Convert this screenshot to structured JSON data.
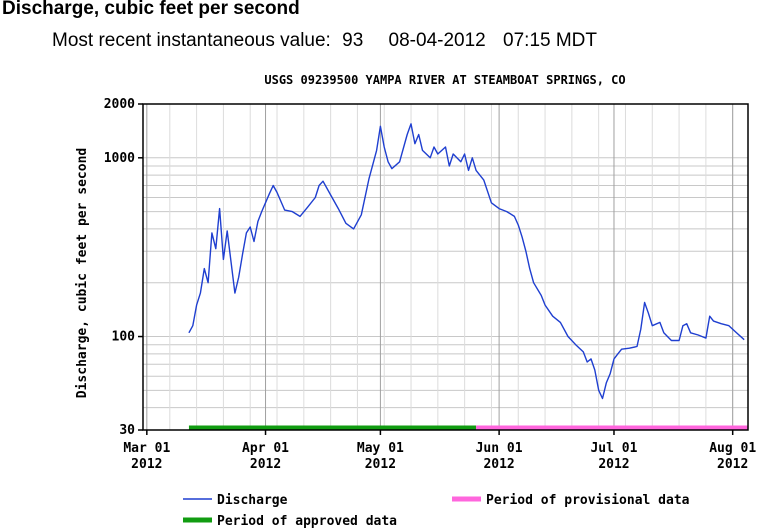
{
  "header": {
    "title": "Discharge, cubic feet per second",
    "recent_label": "Most recent instantaneous value:",
    "recent_value": "93",
    "recent_date": "08-04-2012",
    "recent_time": "07:15 MDT"
  },
  "chart_data": {
    "type": "line",
    "title": "USGS 09239500 YAMPA RIVER AT STEAMBOAT SPRINGS, CO",
    "ylabel": "Discharge, cubic feet per second",
    "xlabel": "",
    "y_scale": "log",
    "ylim": [
      30,
      2000
    ],
    "xlim": [
      "2012-02-29",
      "2012-08-05"
    ],
    "grid": true,
    "y_ticks": [
      30,
      100,
      1000,
      2000
    ],
    "x_ticks": [
      {
        "date": "2012-03-01",
        "line1": "Mar 01",
        "line2": "2012"
      },
      {
        "date": "2012-04-01",
        "line1": "Apr 01",
        "line2": "2012"
      },
      {
        "date": "2012-05-01",
        "line1": "May 01",
        "line2": "2012"
      },
      {
        "date": "2012-06-01",
        "line1": "Jun 01",
        "line2": "2012"
      },
      {
        "date": "2012-07-01",
        "line1": "Jul 01",
        "line2": "2012"
      },
      {
        "date": "2012-08-01",
        "line1": "Aug 01",
        "line2": "2012"
      }
    ],
    "series": [
      {
        "name": "Discharge",
        "color": "#1f3fd0",
        "points": [
          [
            "2012-03-12",
            105
          ],
          [
            "2012-03-13",
            115
          ],
          [
            "2012-03-14",
            150
          ],
          [
            "2012-03-15",
            175
          ],
          [
            "2012-03-16",
            240
          ],
          [
            "2012-03-17",
            200
          ],
          [
            "2012-03-18",
            380
          ],
          [
            "2012-03-19",
            310
          ],
          [
            "2012-03-20",
            520
          ],
          [
            "2012-03-21",
            270
          ],
          [
            "2012-03-22",
            390
          ],
          [
            "2012-03-23",
            260
          ],
          [
            "2012-03-24",
            175
          ],
          [
            "2012-03-25",
            215
          ],
          [
            "2012-03-26",
            290
          ],
          [
            "2012-03-27",
            380
          ],
          [
            "2012-03-28",
            410
          ],
          [
            "2012-03-29",
            340
          ],
          [
            "2012-03-30",
            440
          ],
          [
            "2012-03-31",
            500
          ],
          [
            "2012-04-02",
            630
          ],
          [
            "2012-04-03",
            700
          ],
          [
            "2012-04-04",
            640
          ],
          [
            "2012-04-06",
            510
          ],
          [
            "2012-04-08",
            500
          ],
          [
            "2012-04-10",
            470
          ],
          [
            "2012-04-12",
            530
          ],
          [
            "2012-04-14",
            600
          ],
          [
            "2012-04-15",
            700
          ],
          [
            "2012-04-16",
            740
          ],
          [
            "2012-04-18",
            620
          ],
          [
            "2012-04-20",
            520
          ],
          [
            "2012-04-22",
            430
          ],
          [
            "2012-04-24",
            400
          ],
          [
            "2012-04-26",
            480
          ],
          [
            "2012-04-28",
            760
          ],
          [
            "2012-04-30",
            1100
          ],
          [
            "2012-05-01",
            1500
          ],
          [
            "2012-05-02",
            1150
          ],
          [
            "2012-05-03",
            950
          ],
          [
            "2012-05-04",
            870
          ],
          [
            "2012-05-06",
            950
          ],
          [
            "2012-05-08",
            1350
          ],
          [
            "2012-05-09",
            1550
          ],
          [
            "2012-05-10",
            1200
          ],
          [
            "2012-05-11",
            1350
          ],
          [
            "2012-05-12",
            1100
          ],
          [
            "2012-05-14",
            1000
          ],
          [
            "2012-05-15",
            1150
          ],
          [
            "2012-05-16",
            1050
          ],
          [
            "2012-05-18",
            1150
          ],
          [
            "2012-05-19",
            900
          ],
          [
            "2012-05-20",
            1050
          ],
          [
            "2012-05-22",
            950
          ],
          [
            "2012-05-23",
            1050
          ],
          [
            "2012-05-24",
            850
          ],
          [
            "2012-05-25",
            1000
          ],
          [
            "2012-05-26",
            850
          ],
          [
            "2012-05-28",
            750
          ],
          [
            "2012-05-30",
            560
          ],
          [
            "2012-06-01",
            520
          ],
          [
            "2012-06-03",
            500
          ],
          [
            "2012-06-05",
            470
          ],
          [
            "2012-06-06",
            420
          ],
          [
            "2012-06-07",
            360
          ],
          [
            "2012-06-08",
            300
          ],
          [
            "2012-06-09",
            240
          ],
          [
            "2012-06-10",
            200
          ],
          [
            "2012-06-12",
            170
          ],
          [
            "2012-06-13",
            150
          ],
          [
            "2012-06-15",
            130
          ],
          [
            "2012-06-17",
            120
          ],
          [
            "2012-06-19",
            100
          ],
          [
            "2012-06-21",
            90
          ],
          [
            "2012-06-23",
            82
          ],
          [
            "2012-06-24",
            72
          ],
          [
            "2012-06-25",
            75
          ],
          [
            "2012-06-26",
            65
          ],
          [
            "2012-06-27",
            50
          ],
          [
            "2012-06-28",
            45
          ],
          [
            "2012-06-29",
            55
          ],
          [
            "2012-06-30",
            62
          ],
          [
            "2012-07-01",
            75
          ],
          [
            "2012-07-02",
            80
          ],
          [
            "2012-07-03",
            85
          ],
          [
            "2012-07-05",
            86
          ],
          [
            "2012-07-07",
            88
          ],
          [
            "2012-07-08",
            110
          ],
          [
            "2012-07-09",
            155
          ],
          [
            "2012-07-10",
            135
          ],
          [
            "2012-07-11",
            115
          ],
          [
            "2012-07-13",
            120
          ],
          [
            "2012-07-14",
            105
          ],
          [
            "2012-07-16",
            95
          ],
          [
            "2012-07-18",
            95
          ],
          [
            "2012-07-19",
            115
          ],
          [
            "2012-07-20",
            118
          ],
          [
            "2012-07-21",
            105
          ],
          [
            "2012-07-23",
            102
          ],
          [
            "2012-07-25",
            98
          ],
          [
            "2012-07-26",
            130
          ],
          [
            "2012-07-27",
            122
          ],
          [
            "2012-07-29",
            118
          ],
          [
            "2012-07-31",
            115
          ],
          [
            "2012-08-02",
            105
          ],
          [
            "2012-08-04",
            96
          ]
        ]
      }
    ],
    "periods": [
      {
        "name": "Period of approved data",
        "color": "#119c11",
        "from": "2012-03-12",
        "to": "2012-05-26"
      },
      {
        "name": "Period of provisional data",
        "color": "#ff66dd",
        "from": "2012-05-26",
        "to": "2012-08-05"
      }
    ]
  }
}
